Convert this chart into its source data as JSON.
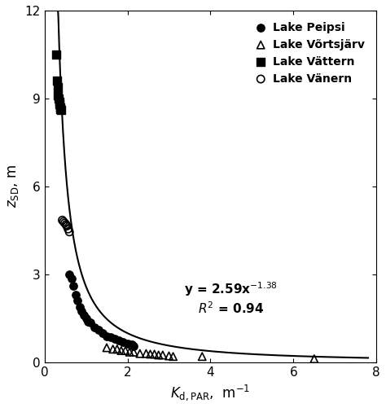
{
  "title": "",
  "xlabel": "$\\mathit{K}_{\\mathrm{d,PAR}}$,  m$^{-1}$",
  "ylabel": "$z_{\\mathrm{SD}}$, m",
  "xlim": [
    0,
    8
  ],
  "ylim": [
    0,
    12
  ],
  "xticks": [
    0,
    2,
    4,
    6,
    8
  ],
  "yticks": [
    0,
    3,
    6,
    9,
    12
  ],
  "fit_a": 2.59,
  "fit_b": -1.38,
  "peipsi_x": [
    0.6,
    0.65,
    0.7,
    0.75,
    0.8,
    0.85,
    0.9,
    0.95,
    1.0,
    1.05,
    1.1,
    1.2,
    1.3,
    1.4,
    1.5,
    1.6,
    1.7,
    1.8,
    1.9,
    2.0,
    2.1,
    2.15
  ],
  "peipsi_y": [
    3.0,
    2.85,
    2.6,
    2.3,
    2.1,
    1.9,
    1.75,
    1.6,
    1.5,
    1.4,
    1.35,
    1.2,
    1.1,
    1.0,
    0.9,
    0.85,
    0.8,
    0.75,
    0.7,
    0.65,
    0.6,
    0.55
  ],
  "vortsjärv_x": [
    1.5,
    1.65,
    1.75,
    1.85,
    1.95,
    2.05,
    2.15,
    2.3,
    2.45,
    2.55,
    2.65,
    2.75,
    2.85,
    3.0,
    3.1,
    3.8,
    6.5
  ],
  "vortsjärv_y": [
    0.5,
    0.45,
    0.45,
    0.4,
    0.4,
    0.35,
    0.35,
    0.3,
    0.3,
    0.28,
    0.28,
    0.25,
    0.25,
    0.22,
    0.2,
    0.2,
    0.12
  ],
  "vattern_x": [
    0.28,
    0.3,
    0.32,
    0.33,
    0.35,
    0.36,
    0.37,
    0.38,
    0.39,
    0.4
  ],
  "vattern_y": [
    10.5,
    9.6,
    9.4,
    9.1,
    9.0,
    8.9,
    8.8,
    8.7,
    8.65,
    8.6
  ],
  "vanern_x": [
    0.43,
    0.46,
    0.49,
    0.52,
    0.54,
    0.57,
    0.6
  ],
  "vanern_y": [
    4.85,
    4.8,
    4.75,
    4.7,
    4.65,
    4.55,
    4.45
  ],
  "eq_x": 4.5,
  "eq_y": 2.2,
  "background_color": "#ffffff",
  "line_color": "#000000"
}
